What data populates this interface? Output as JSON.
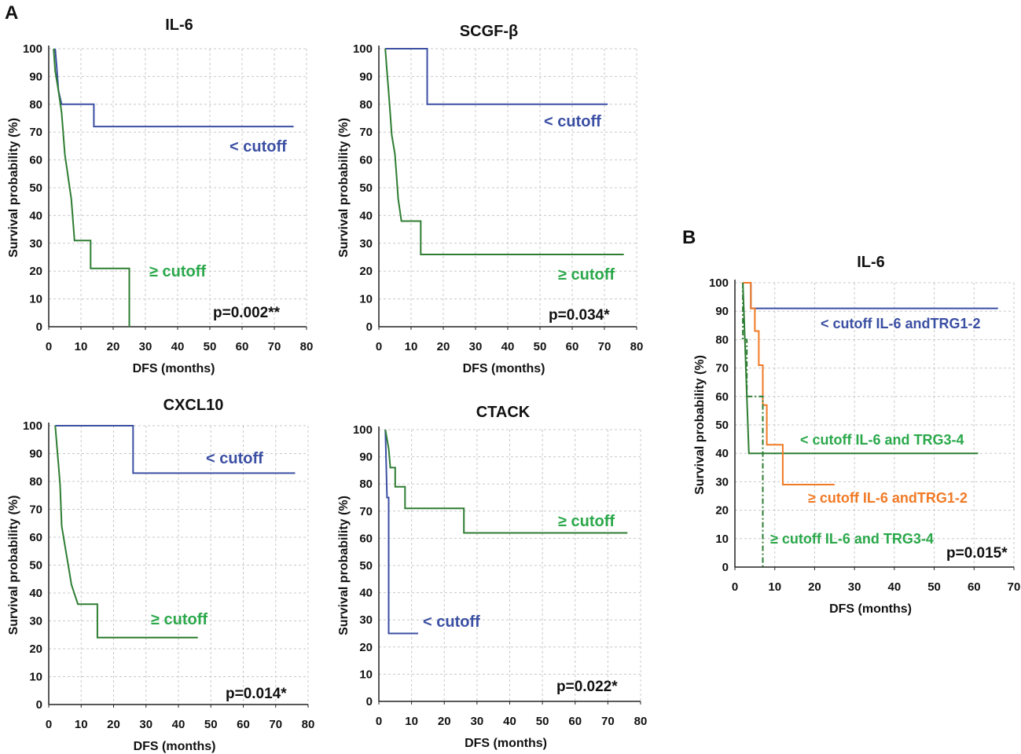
{
  "panel_labels": {
    "a": "A",
    "b": "B"
  },
  "colors": {
    "blue": "#3b4fa3",
    "green": "#2e7d32",
    "green_label": "#2aa84a",
    "orange": "#f07a25"
  },
  "chart_data": [
    {
      "id": "il6",
      "type": "line",
      "title": "IL-6",
      "xlabel": "DFS (months)",
      "ylabel": "Survival  probability (%)",
      "xlim": [
        0,
        80
      ],
      "ylim": [
        0,
        100
      ],
      "xticks": [
        0,
        10,
        20,
        30,
        40,
        50,
        60,
        70,
        80
      ],
      "yticks": [
        0,
        10,
        20,
        30,
        40,
        50,
        60,
        70,
        80,
        90,
        100
      ],
      "pvalue": "p=0.002**",
      "series": [
        {
          "name": "< cutoff",
          "color": "#3b4fa3",
          "label": "< cutoff",
          "label_color": "#3b4fa3",
          "points": [
            [
              2,
              100
            ],
            [
              2.5,
              93
            ],
            [
              3,
              85
            ],
            [
              4,
              80
            ],
            [
              14,
              80
            ],
            [
              14,
              72
            ],
            [
              76,
              72
            ]
          ]
        },
        {
          "name": "≥ cutoff",
          "color": "#2e7d32",
          "label": "≥ cutoff",
          "label_color": "#2aa84a",
          "points": [
            [
              1.5,
              100
            ],
            [
              2,
              92
            ],
            [
              3,
              85
            ],
            [
              4,
              77
            ],
            [
              5,
              62
            ],
            [
              6,
              54
            ],
            [
              7,
              46
            ],
            [
              8,
              31
            ],
            [
              13,
              31
            ],
            [
              13,
              21
            ],
            [
              25,
              21
            ],
            [
              25,
              0
            ]
          ]
        }
      ]
    },
    {
      "id": "scgf",
      "type": "line",
      "title": "SCGF-β",
      "xlabel": "DFS (months)",
      "ylabel": "Survival probability (%)",
      "xlim": [
        0,
        80
      ],
      "ylim": [
        0,
        100
      ],
      "xticks": [
        0,
        10,
        20,
        30,
        40,
        50,
        60,
        70,
        80
      ],
      "yticks": [
        0,
        10,
        20,
        30,
        40,
        50,
        60,
        70,
        80,
        90,
        100
      ],
      "pvalue": "p=0.034*",
      "series": [
        {
          "name": "< cutoff",
          "color": "#3b4fa3",
          "label": "< cutoff",
          "label_color": "#3b4fa3",
          "points": [
            [
              2,
              100
            ],
            [
              15,
              100
            ],
            [
              15,
              80
            ],
            [
              71,
              80
            ]
          ]
        },
        {
          "name": "≥ cutoff",
          "color": "#2e7d32",
          "label": "≥ cutoff",
          "label_color": "#2aa84a",
          "points": [
            [
              2,
              100
            ],
            [
              2.5,
              92
            ],
            [
              3,
              85
            ],
            [
              3.5,
              77
            ],
            [
              4,
              69
            ],
            [
              5,
              62
            ],
            [
              5.5,
              54
            ],
            [
              6,
              46
            ],
            [
              7,
              38
            ],
            [
              13,
              38
            ],
            [
              13,
              26
            ],
            [
              76,
              26
            ]
          ]
        }
      ]
    },
    {
      "id": "cxcl10",
      "type": "line",
      "title": "CXCL10",
      "xlabel": "DFS (months)",
      "ylabel": "Survival probability (%)",
      "xlim": [
        0,
        80
      ],
      "ylim": [
        0,
        100
      ],
      "xticks": [
        0,
        10,
        20,
        30,
        40,
        50,
        60,
        70,
        80
      ],
      "yticks": [
        0,
        10,
        20,
        30,
        40,
        50,
        60,
        70,
        80,
        90,
        100
      ],
      "pvalue": "p=0.014*",
      "series": [
        {
          "name": "< cutoff",
          "color": "#3b4fa3",
          "label": "< cutoff",
          "label_color": "#3b4fa3",
          "points": [
            [
              2,
              100
            ],
            [
              26,
              100
            ],
            [
              26,
              83
            ],
            [
              76,
              83
            ]
          ]
        },
        {
          "name": "≥ cutoff",
          "color": "#2e7d32",
          "label": "≥ cutoff",
          "label_color": "#2aa84a",
          "points": [
            [
              2,
              100
            ],
            [
              2.5,
              93
            ],
            [
              3,
              86
            ],
            [
              3.5,
              79
            ],
            [
              4,
              64
            ],
            [
              5,
              57
            ],
            [
              6,
              50
            ],
            [
              7,
              43
            ],
            [
              9,
              36
            ],
            [
              15,
              36
            ],
            [
              15,
              24
            ],
            [
              46,
              24
            ]
          ]
        }
      ]
    },
    {
      "id": "ctack",
      "type": "line",
      "title": "CTACK",
      "xlabel": "DFS (months)",
      "ylabel": "Survival probability (%)",
      "xlim": [
        0,
        80
      ],
      "ylim": [
        0,
        100
      ],
      "xticks": [
        0,
        10,
        20,
        30,
        40,
        50,
        60,
        70,
        80
      ],
      "yticks": [
        0,
        10,
        20,
        30,
        40,
        50,
        60,
        70,
        80,
        90,
        100
      ],
      "pvalue": "p=0.022*",
      "series": [
        {
          "name": "< cutoff",
          "color": "#3b4fa3",
          "label": "< cutoff",
          "label_color": "#3b4fa3",
          "points": [
            [
              2,
              100
            ],
            [
              2.5,
              75
            ],
            [
              3,
              75
            ],
            [
              3,
              25
            ],
            [
              12,
              25
            ]
          ]
        },
        {
          "name": "≥ cutoff",
          "color": "#2e7d32",
          "label": "≥ cutoff",
          "label_color": "#2aa84a",
          "points": [
            [
              2,
              100
            ],
            [
              3,
              93
            ],
            [
              3.5,
              86
            ],
            [
              5,
              86
            ],
            [
              5,
              79
            ],
            [
              8,
              79
            ],
            [
              8,
              71
            ],
            [
              26,
              71
            ],
            [
              26,
              62
            ],
            [
              76,
              62
            ]
          ]
        }
      ]
    },
    {
      "id": "il6_trg",
      "type": "line",
      "title": "IL-6",
      "xlabel": "DFS (months)",
      "ylabel": "Survival  probability (%)",
      "xlim": [
        0,
        70
      ],
      "ylim": [
        0,
        100
      ],
      "xticks": [
        0,
        10,
        20,
        30,
        40,
        50,
        60,
        70
      ],
      "yticks": [
        0,
        10,
        20,
        30,
        40,
        50,
        60,
        70,
        80,
        90,
        100
      ],
      "pvalue": "p=0.015*",
      "series": [
        {
          "name": "< cutoff IL-6 andTRG1-2",
          "color": "#3b4fa3",
          "label": "< cutoff IL-6 andTRG1-2",
          "label_color": "#3b4fa3",
          "points": [
            [
              2,
              100
            ],
            [
              4,
              100
            ],
            [
              4,
              91
            ],
            [
              66,
              91
            ]
          ]
        },
        {
          "name": "< cutoff IL-6 and TRG3-4",
          "color": "#2e7d32",
          "label": "< cutoff IL-6 and TRG3-4",
          "label_color": "#2aa84a",
          "points": [
            [
              2,
              100
            ],
            [
              2.5,
              80
            ],
            [
              3,
              60
            ],
            [
              3.5,
              40
            ],
            [
              61,
              40
            ]
          ]
        },
        {
          "name": "≥ cutoff IL-6 andTRG1-2",
          "color": "#f07a25",
          "label": "≥ cutoff IL-6 andTRG1-2",
          "label_color": "#f07a25",
          "points": [
            [
              2,
              100
            ],
            [
              4,
              100
            ],
            [
              4,
              91
            ],
            [
              5,
              91
            ],
            [
              5,
              83
            ],
            [
              6,
              83
            ],
            [
              6,
              71
            ],
            [
              7,
              71
            ],
            [
              7,
              57
            ],
            [
              8,
              57
            ],
            [
              8,
              43
            ],
            [
              12,
              43
            ],
            [
              12,
              29
            ],
            [
              25,
              29
            ]
          ]
        },
        {
          "name": "≥ cutoff IL-6 and TRG3-4",
          "color": "#2e7d32",
          "label": "≥ cutoff IL-6 and TRG3-4",
          "label_color": "#2aa84a",
          "dash": true,
          "points": [
            [
              2,
              100
            ],
            [
              2,
              80
            ],
            [
              3,
              80
            ],
            [
              3,
              60
            ],
            [
              7,
              60
            ],
            [
              7,
              0
            ]
          ]
        }
      ]
    }
  ]
}
